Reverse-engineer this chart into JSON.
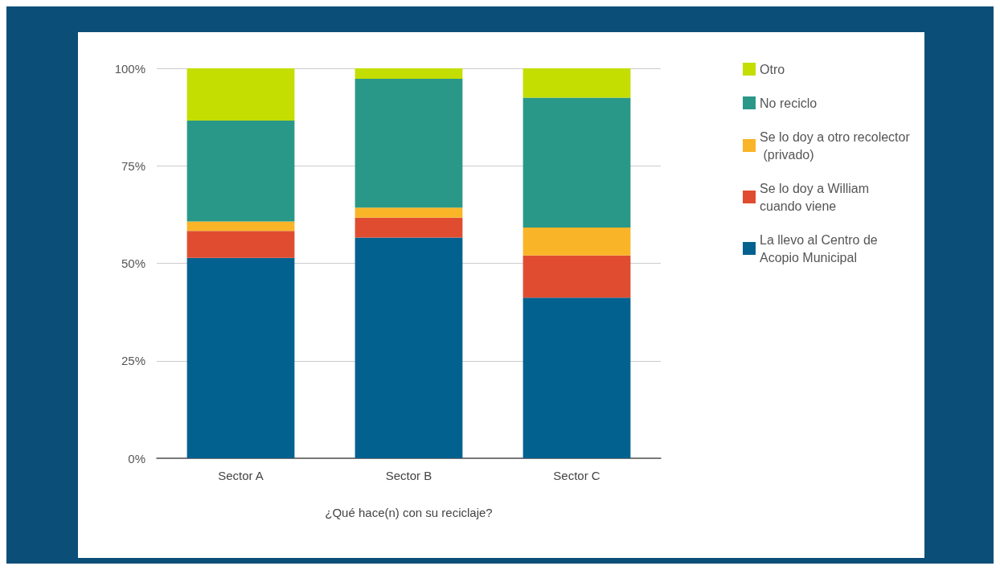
{
  "chart_data": {
    "type": "bar",
    "stacked": true,
    "xlabel": "¿Qué hace(n) con su reciclaje?",
    "categories": [
      "Sector A",
      "Sector B",
      "Sector C"
    ],
    "series": [
      {
        "name": "La llevo al Centro de Acopio Municipal",
        "color": "#03618f",
        "values": [
          51.4,
          56.6,
          41.2
        ]
      },
      {
        "name": "Se lo doy a William cuando viene",
        "color": "#e04c30",
        "values": [
          6.9,
          5.1,
          10.8
        ]
      },
      {
        "name": "Se lo doy a otro recolector (privado)",
        "color": "#f9b428",
        "values": [
          2.4,
          2.6,
          7.2
        ]
      },
      {
        "name": "No reciclo",
        "color": "#2a9888",
        "values": [
          25.9,
          33.0,
          33.3
        ]
      },
      {
        "name": "Otro",
        "color": "#c3de00",
        "values": [
          13.4,
          2.7,
          7.5
        ]
      }
    ],
    "ylim": [
      0,
      100
    ],
    "yticks": [
      {
        "value": 0,
        "label": "0%"
      },
      {
        "value": 25,
        "label": "25%"
      },
      {
        "value": 50,
        "label": "50%"
      },
      {
        "value": 75,
        "label": "75%"
      },
      {
        "value": 100,
        "label": "100%"
      }
    ],
    "grid": "y",
    "legend": "right"
  }
}
